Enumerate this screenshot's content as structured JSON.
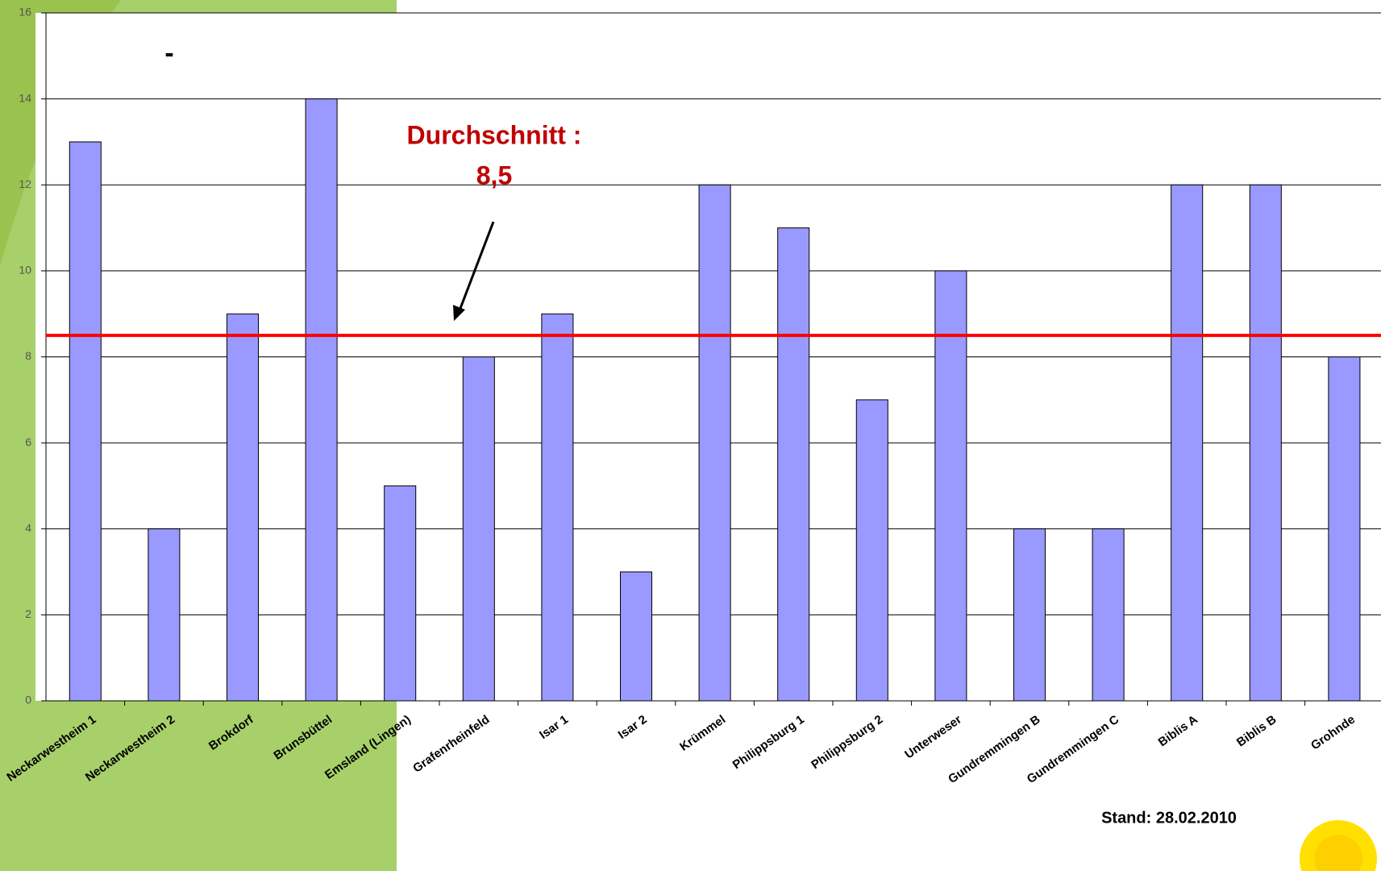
{
  "chart_data": {
    "type": "bar",
    "title": "-",
    "categories": [
      "Neckarwestheim 1",
      "Neckarwestheim 2",
      "Brokdorf",
      "Brunsbüttel",
      "Emsland (Lingen)",
      "Grafenrheinfeld",
      "Isar 1",
      "Isar 2",
      "Krümmel",
      "Philippsburg 1",
      "Philippsburg 2",
      "Unterweser",
      "Gundremmingen B",
      "Gundremmingen C",
      "Biblis A",
      "Biblis B",
      "Grohnde"
    ],
    "values": [
      13,
      4,
      9,
      14,
      5,
      8,
      9,
      3,
      12,
      11,
      7,
      10,
      4,
      4,
      12,
      12,
      8
    ],
    "color": "#9999ff",
    "ylim": [
      0,
      16
    ],
    "yticks": [
      0,
      2,
      4,
      6,
      8,
      10,
      12,
      14,
      16
    ],
    "grid": true,
    "reference_line": {
      "value": 8.5,
      "color": "#ff0000"
    },
    "annotation": [
      "Durchschnitt :",
      "8,5"
    ],
    "note": "Stand: 28.02.2010"
  }
}
